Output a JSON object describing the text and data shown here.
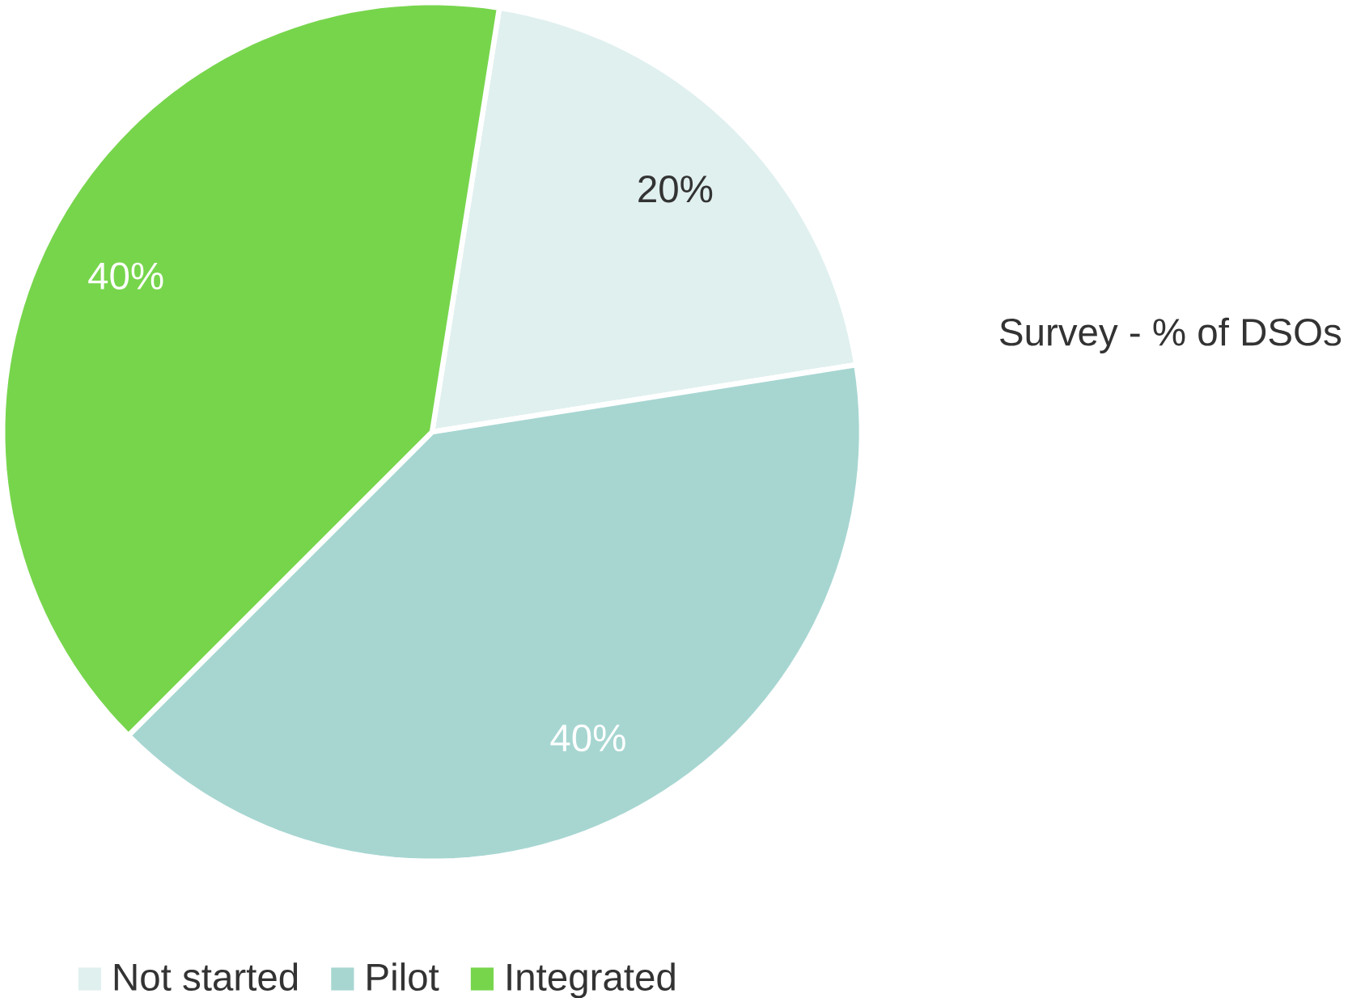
{
  "chart_data": {
    "type": "pie",
    "title": "Survey - % of DSOs",
    "categories": [
      "Not started",
      "Pilot",
      "Integrated"
    ],
    "values": [
      20,
      40,
      40
    ],
    "colors": [
      "#e0f0ef",
      "#a7d6d1",
      "#77d54c"
    ],
    "value_labels": [
      "20%",
      "40%",
      "40%"
    ],
    "legend": "bottom"
  }
}
